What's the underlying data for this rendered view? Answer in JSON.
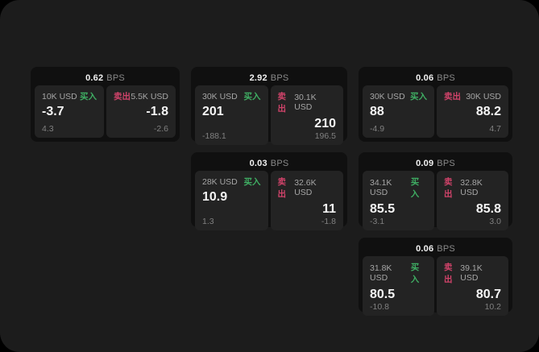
{
  "labels": {
    "buy": "买入",
    "sell": "卖出",
    "unit": "BPS"
  },
  "colors": {
    "background": "#1c1c1c",
    "card": "#101010",
    "panel": "#232323",
    "buy_green": "#3fae63",
    "sell_red": "#d0436a"
  },
  "cards": [
    {
      "bps": "0.62",
      "buy": {
        "size": "10K USD",
        "price": "-3.7",
        "change": "4.3"
      },
      "sell": {
        "size": "5.5K USD",
        "price": "-1.8",
        "change": "-2.6"
      }
    },
    {
      "bps": "2.92",
      "buy": {
        "size": "30K USD",
        "price": "201",
        "change": "-188.1"
      },
      "sell": {
        "size": "30.1K USD",
        "price": "210",
        "change": "196.5"
      }
    },
    {
      "bps": "0.06",
      "buy": {
        "size": "30K USD",
        "price": "88",
        "change": "-4.9"
      },
      "sell": {
        "size": "30K USD",
        "price": "88.2",
        "change": "4.7"
      }
    },
    {
      "bps": "0.03",
      "buy": {
        "size": "28K USD",
        "price": "10.9",
        "change": "1.3"
      },
      "sell": {
        "size": "32.6K USD",
        "price": "11",
        "change": "-1.8"
      }
    },
    {
      "bps": "0.09",
      "buy": {
        "size": "34.1K USD",
        "price": "85.5",
        "change": "-3.1"
      },
      "sell": {
        "size": "32.8K USD",
        "price": "85.8",
        "change": "3.0"
      }
    },
    {
      "bps": "0.06",
      "buy": {
        "size": "31.8K USD",
        "price": "80.5",
        "change": "-10.8"
      },
      "sell": {
        "size": "39.1K USD",
        "price": "80.7",
        "change": "10.2"
      }
    }
  ]
}
